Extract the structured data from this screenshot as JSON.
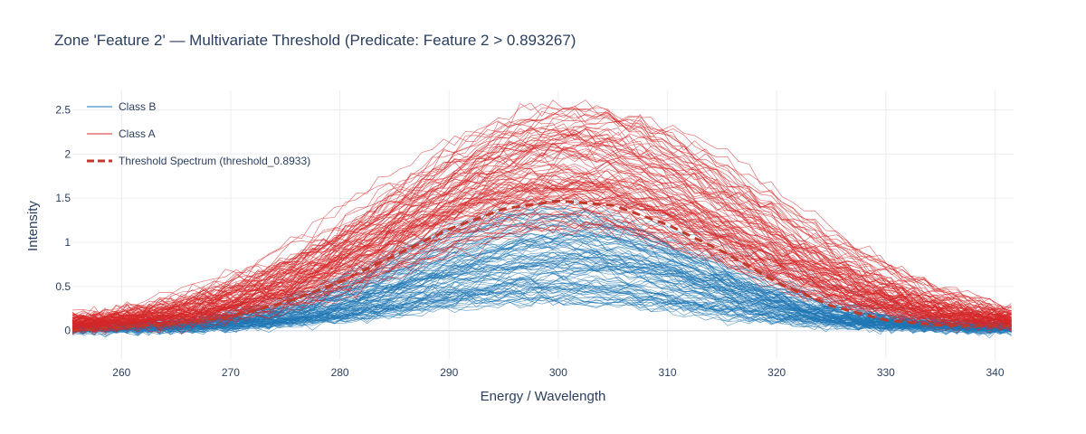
{
  "chart_data": {
    "type": "line",
    "title": "Zone 'Feature 2' — Multivariate Threshold (Predicate: Feature 2 > 0.893267)",
    "xlabel": "Energy / Wavelength",
    "ylabel": "Intensity",
    "xlim": [
      255.5,
      341.7
    ],
    "ylim": [
      -0.32,
      2.72
    ],
    "xticks": [
      260,
      270,
      280,
      290,
      300,
      310,
      320,
      330,
      340
    ],
    "xtick_labels": [
      "260",
      "270",
      "280",
      "290",
      "300",
      "310",
      "320",
      "330",
      "340"
    ],
    "yticks": [
      0,
      0.5,
      1,
      1.5,
      2,
      2.5
    ],
    "ytick_labels": [
      "0",
      "0.5",
      "1",
      "1.5",
      "2",
      "2.5"
    ],
    "grid": true,
    "legend_position": "top-left",
    "series": [
      {
        "name": "Class B",
        "color": "#1f77b4",
        "count": 100,
        "profile": "gaussian",
        "center": 300,
        "width": 14,
        "peak_range": [
          0.3,
          1.4
        ],
        "baseline": 0.02,
        "noise": 0.06
      },
      {
        "name": "Class A",
        "color": "#d62728",
        "count": 100,
        "profile": "gaussian",
        "center": 301,
        "width": 16,
        "peak_range": [
          1.1,
          2.5
        ],
        "baseline": 0.05,
        "noise": 0.08
      },
      {
        "name": "Threshold Spectrum (threshold_0.8933)",
        "color": "#c0392b",
        "dash": "dash",
        "x": [
          255.5,
          260,
          265,
          270,
          275,
          280,
          285,
          290,
          295,
          300,
          305,
          310,
          315,
          320,
          325,
          330,
          335,
          341.7
        ],
        "y": [
          0.0,
          0.04,
          0.08,
          0.16,
          0.32,
          0.55,
          0.85,
          1.15,
          1.38,
          1.47,
          1.42,
          1.2,
          0.9,
          0.55,
          0.28,
          0.12,
          0.06,
          0.05
        ]
      }
    ]
  }
}
